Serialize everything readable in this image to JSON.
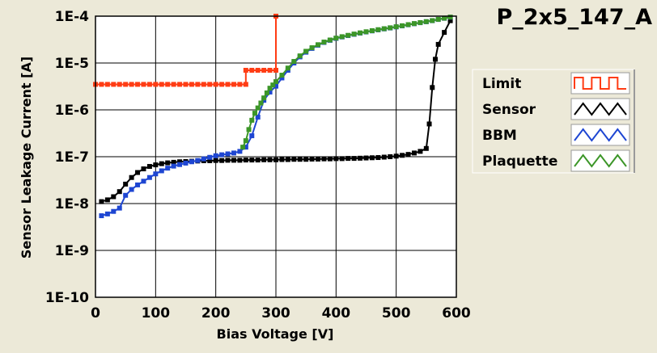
{
  "chart_data": {
    "type": "line",
    "title": "P_2x5_147_A",
    "xlabel": "Bias Voltage [V]",
    "ylabel": "Sensor Leakage Current [A]",
    "xlim": [
      0,
      600
    ],
    "ylim": [
      1e-10,
      0.0001
    ],
    "y_scale": "log",
    "x_ticks": [
      0,
      100,
      200,
      300,
      400,
      500,
      600
    ],
    "x_tick_labels": [
      "0",
      "100",
      "200",
      "300",
      "400",
      "500",
      "600"
    ],
    "y_ticks": [
      1e-10,
      1e-09,
      1e-08,
      1e-07,
      1e-06,
      1e-05,
      0.0001
    ],
    "y_tick_labels": [
      "1E-10",
      "1E-9",
      "1E-8",
      "1E-7",
      "1E-6",
      "1E-5",
      "1E-4"
    ],
    "grid": true,
    "legend_position": "right",
    "series": [
      {
        "name": "Limit",
        "color": "#ff3c14",
        "x": [
          0,
          10,
          20,
          30,
          40,
          50,
          60,
          70,
          80,
          90,
          100,
          110,
          120,
          130,
          140,
          150,
          160,
          170,
          180,
          190,
          200,
          210,
          220,
          230,
          240,
          250,
          250,
          260,
          270,
          280,
          290,
          300,
          300
        ],
        "y": [
          3.5e-06,
          3.5e-06,
          3.5e-06,
          3.5e-06,
          3.5e-06,
          3.5e-06,
          3.5e-06,
          3.5e-06,
          3.5e-06,
          3.5e-06,
          3.5e-06,
          3.5e-06,
          3.5e-06,
          3.5e-06,
          3.5e-06,
          3.5e-06,
          3.5e-06,
          3.5e-06,
          3.5e-06,
          3.5e-06,
          3.5e-06,
          3.5e-06,
          3.5e-06,
          3.5e-06,
          3.5e-06,
          3.5e-06,
          7e-06,
          7e-06,
          7e-06,
          7e-06,
          7e-06,
          7e-06,
          0.0001
        ]
      },
      {
        "name": "Sensor",
        "color": "#000000",
        "x": [
          10,
          20,
          30,
          40,
          50,
          60,
          70,
          80,
          90,
          100,
          110,
          120,
          130,
          140,
          150,
          160,
          170,
          180,
          190,
          200,
          210,
          220,
          230,
          240,
          250,
          260,
          270,
          280,
          290,
          300,
          310,
          320,
          330,
          340,
          350,
          360,
          370,
          380,
          390,
          400,
          410,
          420,
          430,
          440,
          450,
          460,
          470,
          480,
          490,
          500,
          510,
          520,
          530,
          540,
          550,
          555,
          560,
          565,
          570,
          580,
          590
        ],
        "y": [
          1.1e-08,
          1.2e-08,
          1.4e-08,
          1.8e-08,
          2.6e-08,
          3.6e-08,
          4.6e-08,
          5.5e-08,
          6.2e-08,
          6.7e-08,
          7.1e-08,
          7.4e-08,
          7.6e-08,
          7.8e-08,
          7.9e-08,
          8e-08,
          8.1e-08,
          8.2e-08,
          8.2e-08,
          8.3e-08,
          8.3e-08,
          8.4e-08,
          8.4e-08,
          8.4e-08,
          8.5e-08,
          8.5e-08,
          8.5e-08,
          8.6e-08,
          8.6e-08,
          8.6e-08,
          8.7e-08,
          8.7e-08,
          8.8e-08,
          8.8e-08,
          8.8e-08,
          8.9e-08,
          8.9e-08,
          9e-08,
          9e-08,
          9.1e-08,
          9.1e-08,
          9.2e-08,
          9.2e-08,
          9.3e-08,
          9.4e-08,
          9.5e-08,
          9.6e-08,
          9.8e-08,
          1e-07,
          1.03e-07,
          1.07e-07,
          1.12e-07,
          1.2e-07,
          1.3e-07,
          1.5e-07,
          5e-07,
          3e-06,
          1.2e-05,
          2.5e-05,
          4.5e-05,
          8e-05
        ]
      },
      {
        "name": "BBM",
        "color": "#1e46d2",
        "x": [
          10,
          20,
          30,
          40,
          50,
          60,
          70,
          80,
          90,
          100,
          110,
          120,
          130,
          140,
          150,
          160,
          170,
          180,
          190,
          200,
          210,
          220,
          230,
          240,
          250,
          260,
          270,
          280,
          290,
          300,
          310,
          320,
          330,
          340,
          350,
          360,
          370,
          380,
          390,
          400,
          410,
          420,
          430,
          440,
          450,
          460,
          470,
          480,
          490,
          500,
          510,
          520,
          530,
          540,
          550,
          560,
          570,
          580,
          590
        ],
        "y": [
          5.5e-09,
          6e-09,
          6.8e-09,
          8e-09,
          1.5e-08,
          2e-08,
          2.5e-08,
          3e-08,
          3.6e-08,
          4.3e-08,
          5e-08,
          5.7e-08,
          6.3e-08,
          6.8e-08,
          7.3e-08,
          7.8e-08,
          8.3e-08,
          9e-08,
          9.7e-08,
          1.05e-07,
          1.1e-07,
          1.15e-07,
          1.2e-07,
          1.3e-07,
          1.6e-07,
          2.8e-07,
          7e-07,
          1.6e-06,
          2.4e-06,
          3.2e-06,
          4.8e-06,
          7e-06,
          1e-05,
          1.35e-05,
          1.7e-05,
          2.05e-05,
          2.4e-05,
          2.75e-05,
          3.05e-05,
          3.35e-05,
          3.6e-05,
          3.85e-05,
          4.1e-05,
          4.35e-05,
          4.6e-05,
          4.85e-05,
          5.1e-05,
          5.35e-05,
          5.6e-05,
          5.9e-05,
          6.2e-05,
          6.55e-05,
          6.9e-05,
          7.25e-05,
          7.6e-05,
          8e-05,
          8.5e-05,
          9e-05,
          9.5e-05
        ]
      },
      {
        "name": "Plaquette",
        "color": "#3c9628",
        "x": [
          245,
          250,
          255,
          260,
          265,
          270,
          275,
          280,
          285,
          290,
          295,
          300,
          310,
          320,
          330,
          340,
          350,
          360,
          370,
          380,
          390,
          400,
          410,
          420,
          430,
          440,
          450,
          460,
          470,
          480,
          490,
          500,
          510,
          520,
          530,
          540,
          550,
          560,
          570,
          580,
          590
        ],
        "y": [
          1.6e-07,
          2.2e-07,
          3.8e-07,
          6e-07,
          8.5e-07,
          1.1e-06,
          1.4e-06,
          1.8e-06,
          2.3e-06,
          2.9e-06,
          3.4e-06,
          4e-06,
          5.5e-06,
          7.8e-06,
          1.08e-05,
          1.42e-05,
          1.78e-05,
          2.12e-05,
          2.46e-05,
          2.8e-05,
          3.1e-05,
          3.4e-05,
          3.65e-05,
          3.9e-05,
          4.15e-05,
          4.4e-05,
          4.65e-05,
          4.9e-05,
          5.15e-05,
          5.4e-05,
          5.65e-05,
          5.95e-05,
          6.25e-05,
          6.6e-05,
          6.95e-05,
          7.3e-05,
          7.65e-05,
          8.05e-05,
          8.55e-05,
          9.05e-05,
          9.55e-05
        ]
      }
    ]
  }
}
